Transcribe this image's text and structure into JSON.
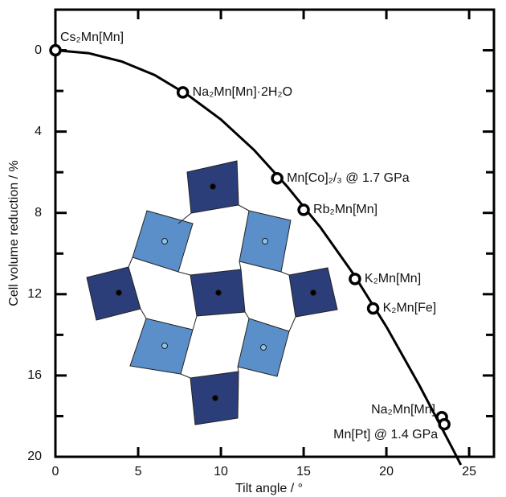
{
  "chart_data": {
    "type": "scatter",
    "xlabel": "Tilt angle / °",
    "ylabel": "Cell volume reduction / %",
    "x": [
      0,
      7.7,
      13.4,
      15.0,
      18.1,
      19.2,
      23.35,
      23.5
    ],
    "values": [
      0,
      2.07,
      6.3,
      7.85,
      11.25,
      12.7,
      18.05,
      18.4
    ],
    "point_labels": [
      "Cs₂Mn[Mn]",
      "Na₂Mn[Mn]·2H₂O",
      "Mn[Co]₂/₃ @ 1.7 GPa",
      "Rb₂Mn[Mn]",
      "K₂Mn[Mn]",
      "K₂Mn[Fe]",
      "Na₂Mn[Mn]",
      "Mn[Pt] @ 1.4 GPa"
    ],
    "curve": {
      "x": [
        0,
        2,
        4,
        6,
        8,
        10,
        12,
        14,
        16,
        18,
        20,
        22,
        24,
        24.5
      ],
      "values": [
        0,
        0.14,
        0.55,
        1.22,
        2.2,
        3.4,
        4.9,
        6.7,
        8.7,
        11.0,
        13.6,
        16.5,
        19.6,
        20.4
      ]
    },
    "color": "#000000",
    "xlim": [
      0,
      26.5
    ],
    "ylim": [
      -2,
      20
    ],
    "y_inverted": true,
    "xticks": [
      0,
      5,
      10,
      15,
      20,
      25
    ],
    "yticks": [
      0,
      4,
      8,
      12,
      16,
      20
    ],
    "y_minor_ticks": [
      2,
      6,
      10,
      14,
      18
    ]
  }
}
